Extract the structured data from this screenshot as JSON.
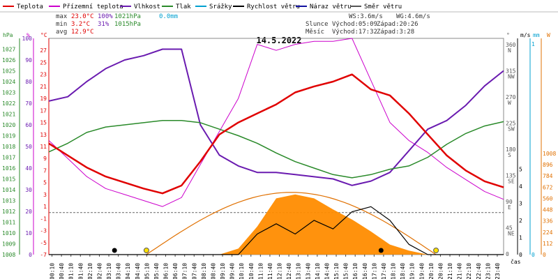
{
  "chart_data": {
    "type": "line",
    "title": "14.5.2022",
    "legend": [
      {
        "label": "Teplota",
        "color": "#e00000"
      },
      {
        "label": "Přízemní teplota",
        "color": "#cc00cc"
      },
      {
        "label": "Vlhkost",
        "color": "#6a1bb0"
      },
      {
        "label": "Tlak",
        "color": "#2a8a2a"
      },
      {
        "label": "Srážky",
        "color": "#00a0d0"
      },
      {
        "label": "Rychlost větru",
        "color": "#000000"
      },
      {
        "label": "Náraz větru",
        "color": "#1010a0"
      },
      {
        "label": "Směr větru",
        "color": "#555555"
      }
    ],
    "stats": {
      "max_label": "max",
      "max_temp": "23.0°C",
      "max_hum": "100%",
      "max_press": "1021hPa",
      "max_rain": "0.0mm",
      "min_label": "min",
      "min_temp": "3.2°C",
      "min_hum": "31%",
      "min_press": "1015hPa",
      "avg_label": "avg",
      "avg_temp": "12.9°C",
      "ws": "WS:3.6m/s",
      "wg": "WG:4.6m/s",
      "sun_label": "Slunce",
      "sunrise": "Východ:05:09",
      "sunset": "Západ:20:26",
      "moon_label": "Měsíc",
      "moonrise": "Východ:17:32",
      "moonset": "Západ:3:28"
    },
    "axes": {
      "hpa_unit": "hPa",
      "pct_unit": "%",
      "temp_unit": "°C",
      "dir_unit": "°",
      "ms_unit": "m/s",
      "w_unit": "W",
      "mm_unit": "mm",
      "cas_label": "čas",
      "hpa_ticks": [
        "1027",
        "1026",
        "1025",
        "1024",
        "1023",
        "1022",
        "1021",
        "1020",
        "1019",
        "1018",
        "1017",
        "1016",
        "1015",
        "1014",
        "1013",
        "1012",
        "1011",
        "1010",
        "1009",
        "1008"
      ],
      "pct_ticks": [
        "100",
        "90",
        "80",
        "70",
        "60",
        "50",
        "40",
        "30",
        "20",
        "10",
        "0"
      ],
      "temp_ticks": [
        "27",
        "25",
        "23",
        "21",
        "19",
        "17",
        "15",
        "13",
        "11",
        "9",
        "7",
        "5",
        "3",
        "1",
        "-1",
        "-3",
        "-5",
        "-7"
      ],
      "dir_ticks": [
        {
          "v": "360",
          "c": "N"
        },
        {
          "v": "315",
          "c": "NW"
        },
        {
          "v": "270",
          "c": "W"
        },
        {
          "v": "225",
          "c": "SW"
        },
        {
          "v": "180",
          "c": "S"
        },
        {
          "v": "135",
          "c": "SE"
        },
        {
          "v": "90",
          "c": "E"
        },
        {
          "v": "45",
          "c": "NE"
        },
        {
          "v": "0",
          "c": ""
        }
      ],
      "ms_ticks": [
        "5",
        "4",
        "3",
        "2",
        "1",
        "0"
      ],
      "mm_ticks": [
        "1",
        "0"
      ],
      "w_ticks": [
        "1008",
        "896",
        "784",
        "672",
        "560",
        "448",
        "336",
        "224",
        "112",
        "0"
      ],
      "time_ticks": [
        "00:10",
        "00:40",
        "01:10",
        "01:40",
        "02:10",
        "02:40",
        "03:10",
        "03:40",
        "04:10",
        "04:40",
        "05:10",
        "05:40",
        "06:10",
        "06:40",
        "07:10",
        "07:40",
        "08:10",
        "08:40",
        "09:10",
        "09:40",
        "10:10",
        "10:40",
        "11:10",
        "11:40",
        "12:10",
        "12:40",
        "13:10",
        "13:40",
        "14:10",
        "14:40",
        "15:10",
        "15:40",
        "16:10",
        "16:40",
        "17:10",
        "17:40",
        "18:10",
        "18:40",
        "19:10",
        "19:40",
        "20:10",
        "20:40",
        "21:10",
        "21:40",
        "22:10",
        "22:40",
        "23:10",
        "23:40"
      ]
    },
    "hours": [
      0,
      1,
      2,
      3,
      4,
      5,
      6,
      7,
      8,
      9,
      10,
      11,
      12,
      13,
      14,
      15,
      16,
      17,
      18,
      19,
      20,
      21,
      22,
      23,
      24
    ],
    "series": [
      {
        "name": "Teplota",
        "unit": "°C",
        "values": [
          11.5,
          9.5,
          7.5,
          6.0,
          5.0,
          4.0,
          3.2,
          4.5,
          8.5,
          13.0,
          15.0,
          16.5,
          18.0,
          20.0,
          21.0,
          21.8,
          23.0,
          20.5,
          19.5,
          16.5,
          13.0,
          9.5,
          7.0,
          5.2,
          4.2
        ]
      },
      {
        "name": "Přízemní teplota",
        "unit": "°C",
        "values": [
          12.0,
          9.0,
          6.0,
          4.0,
          3.0,
          2.0,
          1.0,
          2.5,
          8.0,
          13.5,
          19.0,
          28.0,
          27.0,
          28.0,
          28.5,
          28.5,
          29.0,
          22.0,
          15.0,
          12.0,
          10.0,
          7.5,
          5.5,
          3.5,
          2.2
        ]
      },
      {
        "name": "Vlhkost",
        "unit": "%",
        "values": [
          71,
          73,
          80,
          86,
          90,
          92,
          95,
          95,
          60,
          46,
          41,
          38,
          38,
          37,
          36,
          35,
          32,
          34,
          38,
          48,
          58,
          62,
          69,
          78,
          85
        ]
      },
      {
        "name": "Tlak",
        "unit": "hPa",
        "values": [
          1017.5,
          1018.3,
          1019.3,
          1019.8,
          1020.0,
          1020.2,
          1020.4,
          1020.4,
          1020.2,
          1019.6,
          1019.0,
          1018.3,
          1017.4,
          1016.6,
          1016.0,
          1015.4,
          1015.1,
          1015.4,
          1015.9,
          1016.2,
          1017.0,
          1018.2,
          1019.2,
          1019.9,
          1020.3
        ]
      },
      {
        "name": "Rychlost větru",
        "unit": "m/s",
        "values": [
          0,
          0,
          0,
          0,
          0,
          0,
          0,
          0,
          0,
          0,
          0,
          1.2,
          1.8,
          1.2,
          2.0,
          1.5,
          2.5,
          2.8,
          2.0,
          0.6,
          0,
          0,
          0,
          0,
          0
        ]
      },
      {
        "name": "Solar",
        "unit": "W",
        "values": [
          0,
          0,
          0,
          0,
          0,
          0,
          0,
          0,
          0,
          0,
          60,
          280,
          560,
          600,
          560,
          450,
          350,
          230,
          100,
          40,
          0,
          0,
          0,
          0,
          0
        ]
      }
    ],
    "markers": {
      "sun": [
        "05:09",
        "20:26"
      ],
      "moon": [
        "03:28",
        "17:32"
      ]
    }
  }
}
